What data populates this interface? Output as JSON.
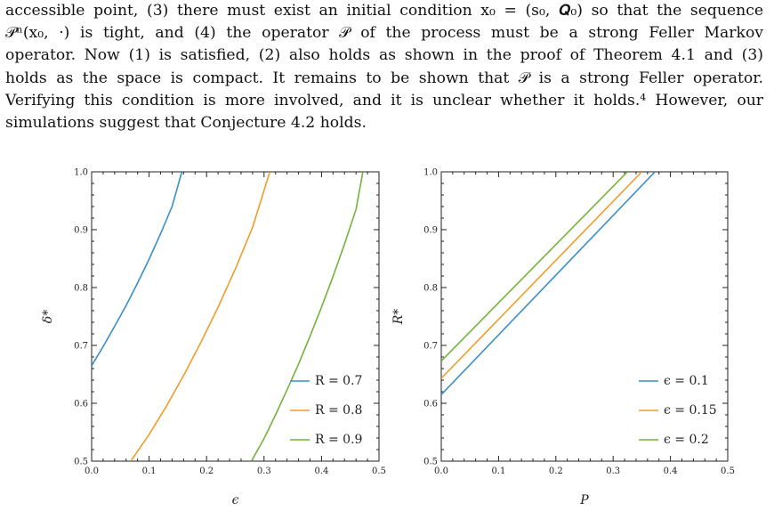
{
  "paragraph": {
    "lines": [
      "accessible point, (3) there must exist an initial condition x₀ = (s₀, 𝑸₀) so that the sequence",
      "𝒫ⁿ(x₀, ·) is tight, and (4) the operator 𝒫 of the process must be a strong Feller Markov",
      "operator. Now (1) is satisfied, (2) also holds as shown in the proof of Theorem 4.1 and (3)",
      "holds as the space is compact. It remains to be shown that 𝒫 is a strong Feller operator.",
      "Verifying this condition is more involved, and it is unclear whether it holds.⁴ However, our",
      "simulations suggest that Conjecture 4.2 holds."
    ]
  },
  "chart_data": [
    {
      "type": "line",
      "xlabel": "ϵ",
      "ylabel": "δ*",
      "xlim": [
        0,
        0.5
      ],
      "ylim": [
        0.5,
        1.0
      ],
      "xticks": [
        "0.0",
        "0.1",
        "0.2",
        "0.3",
        "0.4",
        "0.5"
      ],
      "yticks": [
        "0.5",
        "0.6",
        "0.7",
        "0.8",
        "0.9",
        "1.0"
      ],
      "legend_position": "bottom-right",
      "series": [
        {
          "name": "R = 0.7",
          "color": "#3b8fc7",
          "x": [
            0.0,
            0.02,
            0.04,
            0.06,
            0.08,
            0.1,
            0.12,
            0.14,
            0.157
          ],
          "y": [
            0.665,
            0.698,
            0.733,
            0.769,
            0.808,
            0.849,
            0.893,
            0.94,
            1.0
          ]
        },
        {
          "name": "R = 0.8",
          "color": "#ef9d2a",
          "x": [
            0.068,
            0.1,
            0.13,
            0.16,
            0.19,
            0.22,
            0.25,
            0.28,
            0.31
          ],
          "y": [
            0.5,
            0.546,
            0.595,
            0.648,
            0.705,
            0.766,
            0.832,
            0.904,
            1.0
          ]
        },
        {
          "name": "R = 0.9",
          "color": "#74b33a",
          "x": [
            0.278,
            0.3,
            0.32,
            0.34,
            0.36,
            0.38,
            0.4,
            0.42,
            0.44,
            0.46,
            0.472
          ],
          "y": [
            0.5,
            0.539,
            0.58,
            0.623,
            0.668,
            0.716,
            0.766,
            0.819,
            0.875,
            0.935,
            1.0
          ]
        }
      ]
    },
    {
      "type": "line",
      "xlabel": "P",
      "ylabel": "R*",
      "xlim": [
        0,
        0.5
      ],
      "ylim": [
        0.5,
        1.0
      ],
      "xticks": [
        "0.0",
        "0.1",
        "0.2",
        "0.3",
        "0.4",
        "0.5"
      ],
      "yticks": [
        "0.5",
        "0.6",
        "0.7",
        "0.8",
        "0.9",
        "1.0"
      ],
      "legend_position": "bottom-right",
      "series": [
        {
          "name": "ϵ = 0.1",
          "color": "#3b8fc7",
          "x": [
            0.0,
            0.373
          ],
          "y": [
            0.615,
            1.0
          ]
        },
        {
          "name": "ϵ = 0.15",
          "color": "#ef9d2a",
          "x": [
            0.0,
            0.35
          ],
          "y": [
            0.643,
            1.0
          ]
        },
        {
          "name": "ϵ = 0.2",
          "color": "#74b33a",
          "x": [
            0.0,
            0.325
          ],
          "y": [
            0.673,
            1.0
          ]
        }
      ]
    }
  ]
}
